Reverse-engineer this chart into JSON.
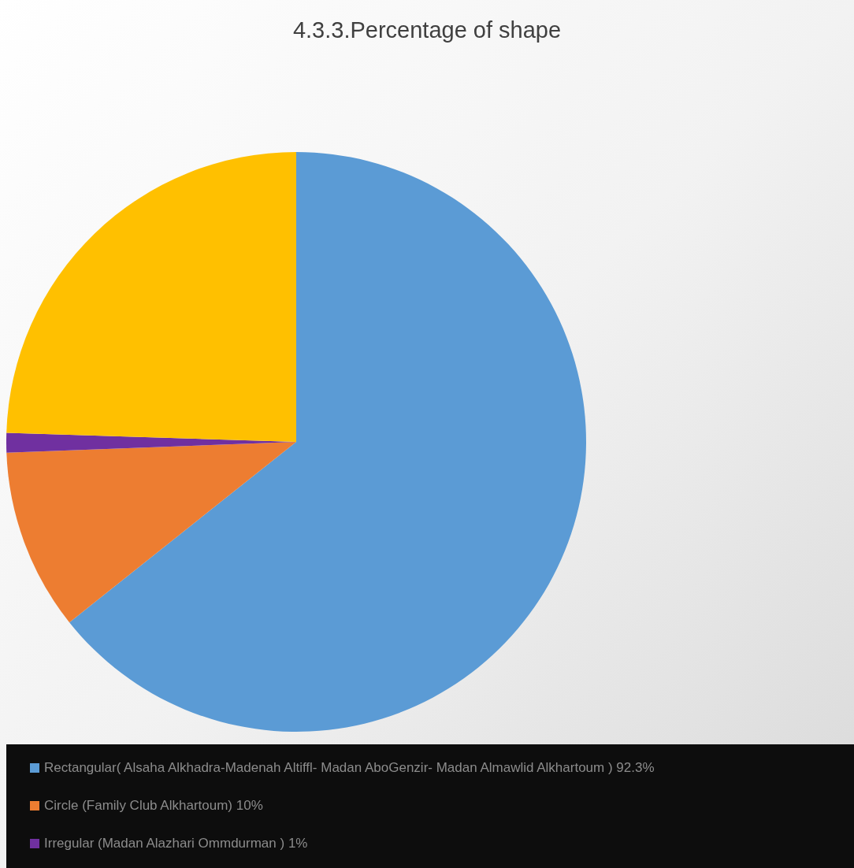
{
  "chart_data": {
    "type": "pie",
    "title": "4.3.3.Percentage of shape",
    "categories": [
      "Rectangular( Alsaha Alkhadra-Madenah Altiffl- Madan AboGenzir- Madan Almawlid Alkhartoum ) 92.3%",
      "Circle (Family Club Alkhartoum) 10%",
      "Irregular (Madan Alazhari Ommdurman ) 1%",
      null
    ],
    "values": [
      64.3,
      10.1,
      1.1,
      24.5
    ],
    "colors": [
      "#5b9bd5",
      "#ed7d31",
      "#7030a0",
      "#ffc000"
    ],
    "legend": "bottom"
  }
}
